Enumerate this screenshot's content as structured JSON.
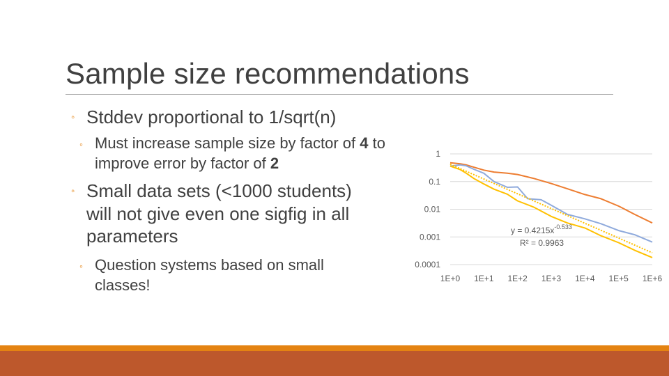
{
  "slide": {
    "title": "Sample size recommendations",
    "bullets": {
      "b1": "Stddev proportional to 1/sqrt(n)",
      "b1_sub": {
        "pre": "Must increase sample size by factor of ",
        "bold1": "4",
        "mid": " to improve error by factor of ",
        "bold2": "2"
      },
      "b2_lines": [
        "Small data sets (<1000 students)",
        "will not give even one sigfig in all",
        "parameters"
      ],
      "b2_sub_lines": [
        "Question systems based on small",
        "classes!"
      ]
    },
    "colors": {
      "accent": "#e48312",
      "footer": "#bd582c",
      "text": "#404040"
    }
  },
  "chart_data": {
    "type": "line",
    "x_scale": "log",
    "y_scale": "log",
    "xlim": [
      1,
      1000000
    ],
    "ylim": [
      0.0001,
      1
    ],
    "x_tick_values": [
      1,
      10,
      100,
      1000,
      10000,
      100000,
      1000000
    ],
    "x_tick_labels": [
      "1E+0",
      "1E+1",
      "1E+2",
      "1E+3",
      "1E+4",
      "1E+5",
      "1E+6"
    ],
    "y_tick_values": [
      1,
      0.1,
      0.01,
      0.001,
      0.0001
    ],
    "y_tick_labels": [
      "1",
      "0.1",
      "0.01",
      "0.001",
      "0.0001"
    ],
    "grid": "horizontal",
    "series": [
      {
        "color": "#ed7d31",
        "x": [
          1,
          2,
          3,
          5,
          10,
          20,
          50,
          100,
          300,
          1000,
          3000,
          10000,
          30000,
          100000,
          300000,
          1000000
        ],
        "y": [
          0.48,
          0.44,
          0.4,
          0.33,
          0.26,
          0.22,
          0.2,
          0.18,
          0.13,
          0.085,
          0.055,
          0.034,
          0.024,
          0.013,
          0.0065,
          0.0032
        ]
      },
      {
        "color": "#8faadc",
        "x": [
          1,
          2,
          3,
          5,
          10,
          20,
          50,
          100,
          200,
          500,
          1000,
          3000,
          10000,
          30000,
          100000,
          300000,
          1000000
        ],
        "y": [
          0.36,
          0.4,
          0.37,
          0.28,
          0.2,
          0.1,
          0.062,
          0.064,
          0.024,
          0.022,
          0.014,
          0.0065,
          0.0045,
          0.003,
          0.0017,
          0.0012,
          0.00065
        ]
      },
      {
        "color": "#ffc000",
        "x": [
          1,
          2,
          3,
          5,
          10,
          20,
          50,
          100,
          300,
          1000,
          3000,
          10000,
          30000,
          100000,
          300000,
          1000000
        ],
        "y": [
          0.36,
          0.27,
          0.2,
          0.13,
          0.082,
          0.053,
          0.035,
          0.02,
          0.012,
          0.0055,
          0.0032,
          0.0021,
          0.0011,
          0.00062,
          0.00033,
          0.00018
        ]
      }
    ],
    "trendline": {
      "color": "#ffc000",
      "coefficient": 0.4215,
      "exponent": -0.533
    },
    "annotations": {
      "equation_main": "y = 0.4215x",
      "equation_exp": "-0.533",
      "r_squared": "R² = 0.9963"
    }
  }
}
